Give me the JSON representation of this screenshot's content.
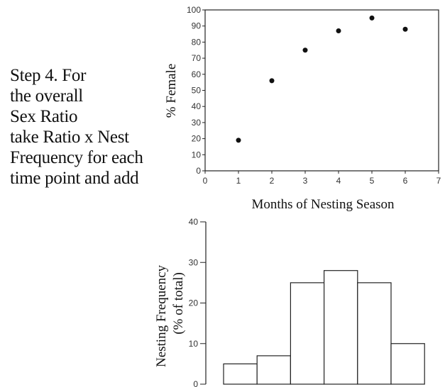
{
  "instruction": {
    "lines": [
      "Step 4. For",
      "the overall",
      "Sex Ratio",
      "take Ratio x Nest",
      "Frequency for each",
      "time point and add"
    ]
  },
  "chart_data": [
    {
      "type": "scatter",
      "title": "",
      "xlabel": "Months of Nesting Season",
      "ylabel": "% Female",
      "xlim": [
        0,
        7
      ],
      "ylim": [
        0,
        100
      ],
      "xticks": [
        0,
        1,
        2,
        3,
        4,
        5,
        6,
        7
      ],
      "yticks": [
        0,
        10,
        20,
        30,
        40,
        50,
        60,
        70,
        80,
        90,
        100
      ],
      "x": [
        1,
        2,
        3,
        4,
        5,
        6
      ],
      "y": [
        19,
        56,
        75,
        87,
        95,
        88
      ],
      "grid": false,
      "marker_color": "#111111"
    },
    {
      "type": "bar",
      "title": "",
      "xlabel": "",
      "ylabel": "Nesting Frequency",
      "ylabel2": "(% of total)",
      "ylim": [
        0,
        40
      ],
      "yticks": [
        0,
        10,
        20,
        30,
        40
      ],
      "x": [
        1,
        2,
        3,
        4,
        5,
        6
      ],
      "values": [
        5,
        7,
        25,
        28,
        25,
        10
      ],
      "grid": false,
      "bar_fill": "#ffffff",
      "bar_stroke": "#222222"
    }
  ]
}
